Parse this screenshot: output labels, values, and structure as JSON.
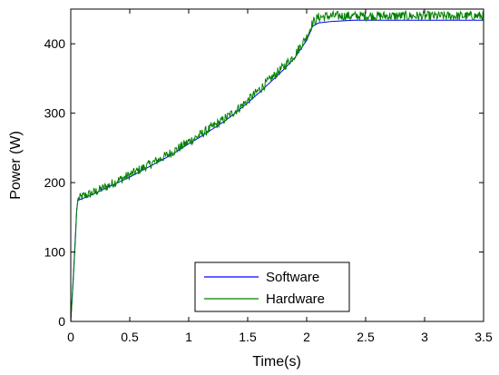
{
  "chart_data": {
    "type": "line",
    "title": "",
    "xlabel": "Time(s)",
    "ylabel": "Power (W)",
    "xlim": [
      0,
      3.5
    ],
    "ylim": [
      0,
      450
    ],
    "xticks": [
      0,
      0.5,
      1,
      1.5,
      2,
      2.5,
      3,
      3.5
    ],
    "xtick_labels": [
      "0",
      "0.5",
      "1",
      "1.5",
      "2",
      "2.5",
      "3",
      "3.5"
    ],
    "yticks": [
      0,
      100,
      200,
      300,
      400
    ],
    "ytick_labels": [
      "0",
      "100",
      "200",
      "300",
      "400"
    ],
    "grid": false,
    "legend_position": "bottom-center",
    "series": [
      {
        "name": "Software",
        "color": "#0000ff",
        "x": [
          0,
          0.02,
          0.04,
          0.05,
          0.06,
          0.08,
          0.1,
          0.2,
          0.3,
          0.4,
          0.5,
          0.6,
          0.7,
          0.8,
          0.9,
          1.0,
          1.1,
          1.2,
          1.3,
          1.4,
          1.5,
          1.6,
          1.7,
          1.8,
          1.9,
          2.0,
          2.05,
          2.1,
          2.2,
          2.3,
          2.4,
          2.5,
          2.6,
          2.7,
          2.8,
          2.9,
          3.0,
          3.1,
          3.2,
          3.3,
          3.4,
          3.5
        ],
        "y": [
          0,
          60,
          125,
          160,
          174,
          176,
          177,
          184,
          192,
          200,
          208,
          217,
          226,
          235,
          245,
          256,
          266,
          277,
          288,
          301,
          315,
          330,
          346,
          362,
          380,
          405,
          425,
          430,
          432,
          433,
          434,
          434,
          434,
          434,
          434,
          434,
          434,
          434,
          434,
          434,
          434,
          434
        ]
      },
      {
        "name": "Hardware",
        "color": "#008000",
        "x": [
          0,
          0.02,
          0.04,
          0.05,
          0.06,
          0.08,
          0.1,
          0.2,
          0.3,
          0.4,
          0.5,
          0.6,
          0.7,
          0.8,
          0.9,
          1.0,
          1.1,
          1.2,
          1.3,
          1.4,
          1.5,
          1.6,
          1.7,
          1.8,
          1.9,
          2.0,
          2.05,
          2.1,
          2.2,
          2.3,
          2.4,
          2.5,
          2.6,
          2.7,
          2.8,
          2.9,
          3.0,
          3.1,
          3.2,
          3.3,
          3.4,
          3.5
        ],
        "y": [
          0,
          55,
          120,
          158,
          176,
          178,
          180,
          186,
          194,
          203,
          211,
          220,
          229,
          238,
          248,
          259,
          269,
          280,
          291,
          304,
          318,
          334,
          350,
          366,
          384,
          410,
          430,
          438,
          440,
          440,
          440,
          440,
          440,
          440,
          440,
          440,
          440,
          440,
          440,
          440,
          440,
          440
        ],
        "noise_amplitude": 7
      }
    ]
  }
}
